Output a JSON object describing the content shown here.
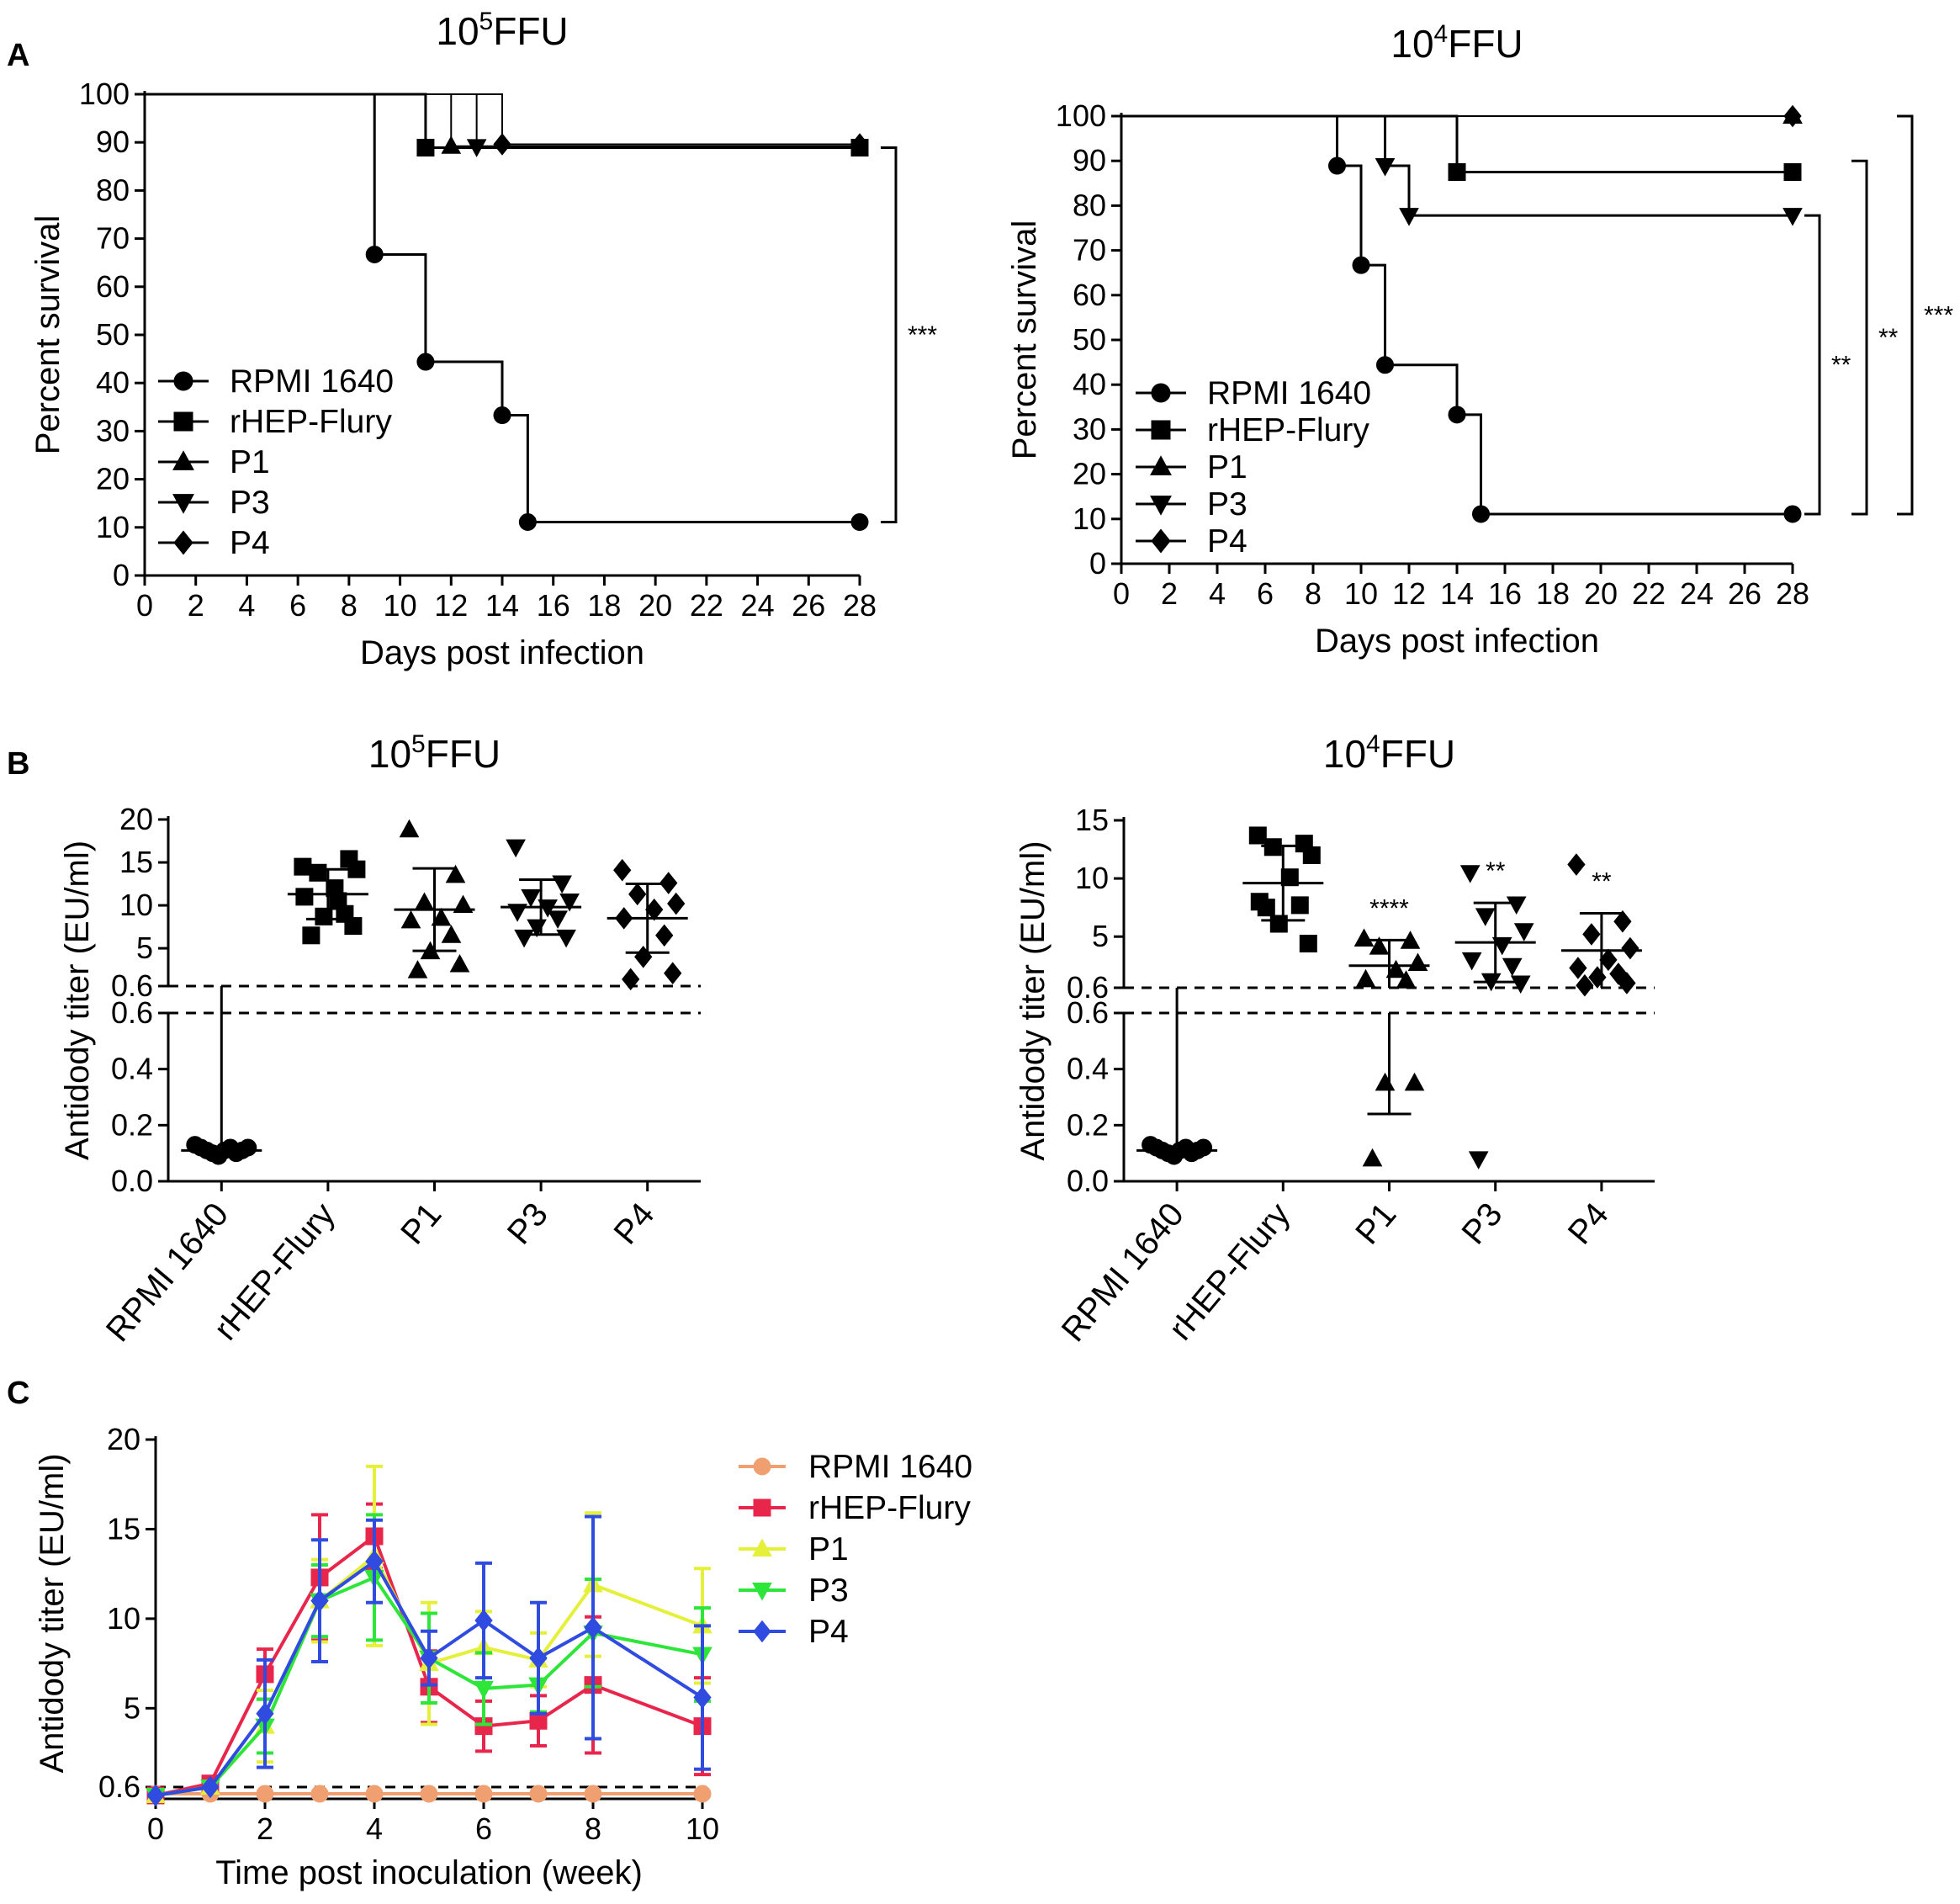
{
  "figure": {
    "panels": [
      {
        "letter": "A"
      },
      {
        "letter": "B"
      },
      {
        "letter": "C"
      }
    ]
  },
  "chart_data": [
    {
      "id": "A1",
      "type": "line",
      "subtype": "kaplan-meier",
      "title_base": "10",
      "title_exp": "5",
      "title_unit": "FFU",
      "xlabel": "Days post infection",
      "ylabel": "Percent survival",
      "xlim": [
        0,
        28
      ],
      "ylim": [
        0,
        100
      ],
      "xticks": [
        0,
        2,
        4,
        6,
        8,
        10,
        12,
        14,
        16,
        18,
        20,
        22,
        24,
        26,
        28
      ],
      "yticks": [
        0,
        10,
        20,
        30,
        40,
        50,
        60,
        70,
        80,
        90,
        100
      ],
      "legend_position": "bottom-left",
      "series": [
        {
          "name": "RPMI 1640",
          "marker": "circle",
          "weight": 3,
          "steps": [
            [
              0,
              100
            ],
            [
              9,
              66.7
            ],
            [
              11,
              44.4
            ],
            [
              14,
              33.3
            ],
            [
              15,
              11.1
            ],
            [
              28,
              11.1
            ]
          ],
          "markers": [
            [
              9,
              66.7
            ],
            [
              11,
              44.4
            ],
            [
              14,
              33.3
            ],
            [
              15,
              11.1
            ],
            [
              28,
              11.1
            ]
          ]
        },
        {
          "name": "rHEP-Flury",
          "marker": "square",
          "weight": 3,
          "steps": [
            [
              0,
              100
            ],
            [
              11,
              88.9
            ],
            [
              28,
              88.9
            ]
          ],
          "markers": [
            [
              11,
              88.9
            ],
            [
              28,
              88.9
            ]
          ]
        },
        {
          "name": "P1",
          "marker": "triangle-up",
          "weight": 2,
          "steps": [
            [
              0,
              100
            ],
            [
              12,
              89.2
            ],
            [
              28,
              89.2
            ]
          ],
          "markers": [
            [
              12,
              89.2
            ]
          ]
        },
        {
          "name": "P3",
          "marker": "triangle-down",
          "weight": 2,
          "steps": [
            [
              0,
              100
            ],
            [
              13,
              89.1
            ],
            [
              28,
              89.1
            ]
          ],
          "markers": [
            [
              13,
              89.1
            ]
          ]
        },
        {
          "name": "P4",
          "marker": "diamond",
          "weight": 2,
          "steps": [
            [
              0,
              100
            ],
            [
              14,
              89.6
            ],
            [
              28,
              89.6
            ]
          ],
          "markers": [
            [
              14,
              89.6
            ],
            [
              28,
              89.6
            ]
          ]
        }
      ],
      "brackets": [
        {
          "label": "***",
          "y1": 88.9,
          "y2": 11.1
        }
      ]
    },
    {
      "id": "A2",
      "type": "line",
      "subtype": "kaplan-meier",
      "title_base": "10",
      "title_exp": "4",
      "title_unit": "FFU",
      "xlabel": "Days post infection",
      "ylabel": "Percent survival",
      "xlim": [
        0,
        28
      ],
      "ylim": [
        0,
        100
      ],
      "xticks": [
        0,
        2,
        4,
        6,
        8,
        10,
        12,
        14,
        16,
        18,
        20,
        22,
        24,
        26,
        28
      ],
      "yticks": [
        0,
        10,
        20,
        30,
        40,
        50,
        60,
        70,
        80,
        90,
        100
      ],
      "legend_position": "bottom-left",
      "series": [
        {
          "name": "RPMI 1640",
          "marker": "circle",
          "weight": 3,
          "steps": [
            [
              0,
              100
            ],
            [
              9,
              88.9
            ],
            [
              10,
              66.7
            ],
            [
              11,
              44.4
            ],
            [
              14,
              33.3
            ],
            [
              15,
              11.1
            ],
            [
              28,
              11.1
            ]
          ],
          "markers": [
            [
              9,
              88.9
            ],
            [
              10,
              66.7
            ],
            [
              11,
              44.4
            ],
            [
              14,
              33.3
            ],
            [
              15,
              11.1
            ],
            [
              28,
              11.1
            ]
          ]
        },
        {
          "name": "rHEP-Flury",
          "marker": "square",
          "weight": 3,
          "steps": [
            [
              0,
              100
            ],
            [
              14,
              87.5
            ],
            [
              28,
              87.5
            ]
          ],
          "markers": [
            [
              14,
              87.5
            ],
            [
              28,
              87.5
            ]
          ]
        },
        {
          "name": "P1",
          "marker": "triangle-up",
          "weight": 2,
          "steps": [
            [
              0,
              100
            ],
            [
              28,
              100
            ]
          ],
          "markers": [
            [
              28,
              100
            ]
          ]
        },
        {
          "name": "P3",
          "marker": "triangle-down",
          "weight": 3,
          "steps": [
            [
              0,
              100
            ],
            [
              11,
              88.9
            ],
            [
              12,
              77.8
            ],
            [
              28,
              77.8
            ]
          ],
          "markers": [
            [
              11,
              88.9
            ],
            [
              12,
              77.8
            ],
            [
              28,
              77.8
            ]
          ]
        },
        {
          "name": "P4",
          "marker": "diamond",
          "weight": 2,
          "steps": [
            [
              0,
              100
            ],
            [
              28,
              100
            ]
          ],
          "markers": [
            [
              28,
              100
            ]
          ]
        }
      ],
      "brackets": [
        {
          "label": "**",
          "y1": 77.8,
          "y2": 11.1
        },
        {
          "label": "**",
          "y1": 90,
          "y2": 11.1
        },
        {
          "label": "***",
          "y1": 100,
          "y2": 11.1
        }
      ]
    },
    {
      "id": "B1",
      "type": "scatter",
      "subtype": "broken-axis dot plot",
      "title_base": "10",
      "title_exp": "5",
      "title_unit": "FFU",
      "ylabel": "Antidody titer (EU/ml)",
      "categories": [
        "RPMI 1640",
        "rHEP-Flury",
        "P1",
        "P3",
        "P4"
      ],
      "upper_range": [
        0.6,
        20
      ],
      "upper_ticks": [
        "0.6",
        "5",
        "10",
        "15",
        "20"
      ],
      "lower_range": [
        0,
        0.6
      ],
      "lower_ticks": [
        "0.0",
        "0.2",
        "0.4",
        "0.6"
      ],
      "cutoff": 0.6,
      "groups": [
        {
          "name": "RPMI 1640",
          "marker": "circle",
          "points": [
            0.13,
            0.12,
            0.11,
            0.1,
            0.09,
            0.11,
            0.12,
            0.1,
            0.11,
            0.12
          ],
          "mean": 0.11,
          "sd": 0.01,
          "label": ""
        },
        {
          "name": "rHEP-Flury",
          "marker": "square",
          "points": [
            14.5,
            15.4,
            13.8,
            14.2,
            12.0,
            11.0,
            9.0,
            8.7,
            7.6,
            6.5,
            10.5
          ],
          "mean": 11.3,
          "sd": 2.9,
          "label": ""
        },
        {
          "name": "P1",
          "marker": "triangle-up",
          "points": [
            18.8,
            13.5,
            10.3,
            10.0,
            8.5,
            8.2,
            6.5,
            4.6,
            3.1,
            2.4
          ],
          "mean": 9.5,
          "sd": 4.8,
          "label": ""
        },
        {
          "name": "P3",
          "marker": "triangle-down",
          "points": [
            16.8,
            12.6,
            11.0,
            10.5,
            9.8,
            9.3,
            8.5,
            7.5,
            6.3,
            6.3
          ],
          "mean": 9.8,
          "sd": 3.2,
          "label": ""
        },
        {
          "name": "P4",
          "marker": "diamond",
          "points": [
            14.1,
            12.6,
            11.3,
            10.2,
            9.5,
            8.5,
            6.5,
            4.0,
            2.1,
            1.4
          ],
          "mean": 8.5,
          "sd": 4.0,
          "label": ""
        }
      ]
    },
    {
      "id": "B2",
      "type": "scatter",
      "subtype": "broken-axis dot plot",
      "title_base": "10",
      "title_exp": "4",
      "title_unit": "FFU",
      "ylabel": "Antidody titer (EU/ml)",
      "categories": [
        "RPMI 1640",
        "rHEP-Flury",
        "P1",
        "P3",
        "P4"
      ],
      "upper_range": [
        0.6,
        15
      ],
      "upper_ticks": [
        "0.6",
        "5",
        "10",
        "15"
      ],
      "lower_range": [
        0,
        0.6
      ],
      "lower_ticks": [
        "0.0",
        "0.2",
        "0.4",
        "0.6"
      ],
      "cutoff": 0.6,
      "groups": [
        {
          "name": "RPMI 1640",
          "marker": "circle",
          "points": [
            0.13,
            0.12,
            0.11,
            0.1,
            0.09,
            0.11,
            0.12,
            0.1,
            0.11,
            0.12
          ],
          "mean": 0.11,
          "sd": 0.01,
          "label": ""
        },
        {
          "name": "rHEP-Flury",
          "marker": "square",
          "points": [
            13.7,
            13.0,
            12.7,
            12.0,
            10.1,
            8.0,
            7.7,
            6.1,
            4.4,
            7.5
          ],
          "mean": 9.6,
          "sd": 3.2,
          "label": ""
        },
        {
          "name": "P1",
          "marker": "triangle-up",
          "points": [
            4.8,
            4.6,
            4.1,
            2.7,
            2.1,
            1.3,
            1.2,
            0.35,
            0.35,
            0.08
          ],
          "mean": 2.5,
          "sd": 2.2,
          "label": "****",
          "lower_bar": [
            0.24,
            0.6
          ]
        },
        {
          "name": "P3",
          "marker": "triangle-down",
          "points": [
            10.5,
            7.8,
            6.8,
            5.5,
            4.3,
            3.0,
            2.5,
            1.2,
            1.0,
            0.08
          ],
          "mean": 4.5,
          "sd": 3.4,
          "label": "**"
        },
        {
          "name": "P4",
          "marker": "diamond",
          "points": [
            11.2,
            6.3,
            5.2,
            4.0,
            3.0,
            2.3,
            1.8,
            1.5,
            1.0,
            0.8
          ],
          "mean": 3.8,
          "sd": 3.2,
          "label": "**"
        }
      ]
    },
    {
      "id": "C",
      "type": "line",
      "subtype": "mean with error bars",
      "xlabel": "Time post inoculation (week)",
      "ylabel": "Antidody titer (EU/ml)",
      "x": [
        0,
        1,
        2,
        3,
        4,
        5,
        6,
        7,
        8,
        10
      ],
      "xticks": [
        "0",
        "2",
        "4",
        "6",
        "8",
        "10"
      ],
      "yticks": [
        "0.6",
        "5",
        "10",
        "15",
        "20"
      ],
      "ylim": [
        0.6,
        20
      ],
      "cutoff": 0.6,
      "legend_position": "top-right",
      "series": [
        {
          "name": "RPMI 1640",
          "color": "#f0a070",
          "marker": "circle",
          "values": [
            0.2,
            0.2,
            0.2,
            0.2,
            0.2,
            0.2,
            0.2,
            0.2,
            0.2,
            0.2
          ],
          "errors": [
            0,
            0,
            0,
            0,
            0,
            0,
            0,
            0,
            0,
            0
          ]
        },
        {
          "name": "rHEP-Flury",
          "color": "#e8264c",
          "marker": "square",
          "values": [
            0.3,
            0.8,
            6.9,
            12.3,
            14.6,
            6.2,
            4.0,
            4.3,
            6.3,
            4.0
          ],
          "errors": [
            0,
            0,
            1.4,
            3.5,
            1.8,
            2.0,
            1.4,
            1.4,
            3.8,
            2.7
          ]
        },
        {
          "name": "P1",
          "color": "#e4f03a",
          "marker": "triangle-up",
          "values": [
            0.3,
            0.6,
            4.0,
            11.0,
            13.5,
            7.5,
            8.4,
            7.7,
            11.9,
            9.6
          ],
          "errors": [
            0,
            0,
            2.0,
            2.3,
            5.0,
            3.4,
            2.0,
            1.5,
            4.0,
            3.2
          ]
        },
        {
          "name": "P3",
          "color": "#2ee53a",
          "marker": "triangle-down",
          "values": [
            0.3,
            0.6,
            4.0,
            11.0,
            12.3,
            7.8,
            6.1,
            6.3,
            9.2,
            8.0
          ],
          "errors": [
            0,
            0,
            1.5,
            2.0,
            3.5,
            2.5,
            2.0,
            1.5,
            3.0,
            2.6
          ]
        },
        {
          "name": "P4",
          "color": "#2f4be0",
          "marker": "diamond",
          "values": [
            0.3,
            0.6,
            4.7,
            11.0,
            13.2,
            7.8,
            9.9,
            7.8,
            9.5,
            5.6
          ],
          "errors": [
            0,
            0,
            3.0,
            3.4,
            2.3,
            1.5,
            3.2,
            3.1,
            6.2,
            4.0
          ]
        }
      ]
    }
  ]
}
